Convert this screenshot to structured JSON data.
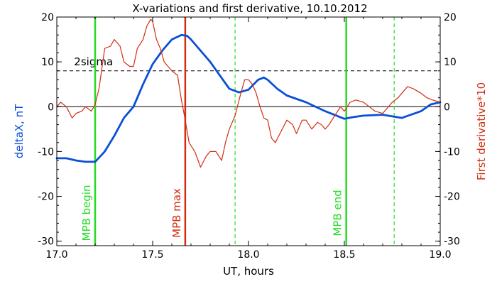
{
  "chart_data": {
    "type": "line",
    "title": "X-variations and first derivative, 10.10.2012",
    "xlabel": "UT, hours",
    "ylabel_left": "deltaX, nT",
    "ylabel_right": "First derivative*10",
    "xlim": [
      17.0,
      19.0
    ],
    "ylim": [
      -31,
      20
    ],
    "x_ticks": [
      17.0,
      17.5,
      18.0,
      18.5,
      19.0
    ],
    "x_tick_labels": [
      "17.0",
      "17.5",
      "18.0",
      "18.5",
      "19.0"
    ],
    "y_ticks": [
      20,
      10,
      0,
      -10,
      -20,
      -30
    ],
    "y_tick_labels": [
      "20",
      "10",
      "0",
      "-10",
      "-20",
      "-30"
    ],
    "colors": {
      "deltaX": "#0a4fd8",
      "derivative": "#d22d10",
      "mpb_marker": "#22dd22",
      "mpb_max": "#d22d10",
      "guide": "#000000"
    },
    "series": [
      {
        "name": "deltaX, nT",
        "axis": "left",
        "x": [
          17.0,
          17.05,
          17.1,
          17.15,
          17.2,
          17.25,
          17.3,
          17.35,
          17.4,
          17.45,
          17.5,
          17.55,
          17.6,
          17.65,
          17.68,
          17.7,
          17.75,
          17.8,
          17.85,
          17.9,
          17.95,
          18.0,
          18.05,
          18.08,
          18.1,
          18.15,
          18.2,
          18.3,
          18.4,
          18.5,
          18.55,
          18.6,
          18.7,
          18.8,
          18.9,
          18.95,
          19.0
        ],
        "y": [
          -11.5,
          -11.5,
          -12.0,
          -12.3,
          -12.3,
          -10.0,
          -6.5,
          -2.5,
          0.0,
          5.0,
          9.5,
          12.5,
          15.0,
          16.0,
          15.8,
          15.0,
          12.5,
          10.0,
          7.0,
          4.0,
          3.2,
          3.8,
          6.0,
          6.5,
          6.0,
          4.0,
          2.5,
          1.0,
          -1.0,
          -2.7,
          -2.3,
          -2.0,
          -1.8,
          -2.5,
          -1.0,
          0.5,
          1.0
        ]
      },
      {
        "name": "First derivative*10",
        "axis": "right",
        "x": [
          17.0,
          17.02,
          17.05,
          17.08,
          17.1,
          17.13,
          17.15,
          17.18,
          17.2,
          17.22,
          17.25,
          17.28,
          17.3,
          17.33,
          17.35,
          17.38,
          17.4,
          17.42,
          17.45,
          17.47,
          17.49,
          17.5,
          17.52,
          17.54,
          17.56,
          17.58,
          17.6,
          17.63,
          17.65,
          17.67,
          17.69,
          17.72,
          17.75,
          17.78,
          17.8,
          17.83,
          17.86,
          17.88,
          17.9,
          17.93,
          17.96,
          17.98,
          18.0,
          18.02,
          18.04,
          18.06,
          18.08,
          18.1,
          18.12,
          18.14,
          18.17,
          18.2,
          18.23,
          18.25,
          18.28,
          18.3,
          18.33,
          18.36,
          18.38,
          18.4,
          18.42,
          18.45,
          18.48,
          18.5,
          18.53,
          18.56,
          18.6,
          18.63,
          18.66,
          18.7,
          18.72,
          18.75,
          18.78,
          18.8,
          18.83,
          18.86,
          18.88,
          18.9,
          18.93,
          18.96,
          19.0
        ],
        "y": [
          0,
          1,
          0,
          -2.5,
          -1.5,
          -1,
          0,
          -1,
          0.5,
          4,
          13,
          13.5,
          15,
          13.5,
          10,
          9,
          9,
          13,
          15,
          18,
          19.5,
          19,
          15,
          13,
          10,
          9,
          8,
          7,
          1.5,
          -3,
          -8,
          -10,
          -13.5,
          -11,
          -10,
          -10,
          -12,
          -8,
          -5,
          -2,
          3,
          6,
          6,
          5,
          3,
          0,
          -2.5,
          -3,
          -7,
          -8,
          -5.5,
          -3,
          -4,
          -6,
          -3,
          -3,
          -5,
          -3.5,
          -4,
          -5,
          -4,
          -2,
          0,
          -1,
          1,
          1.5,
          1,
          0,
          -1,
          -1.5,
          -0.5,
          1,
          2,
          3,
          4.5,
          4,
          3.5,
          3,
          2,
          1.5,
          1
        ]
      }
    ],
    "reference_lines": {
      "two_sigma_label": "2sigma",
      "two_sigma_value": 8,
      "zero_value": 0
    },
    "markers": [
      {
        "label": "MPB begin",
        "x": 17.2,
        "kind": "solid",
        "color_key": "mpb_marker",
        "show_label": true
      },
      {
        "label": "MPB max",
        "x": 17.67,
        "kind": "solid",
        "color_key": "mpb_max",
        "show_label": true
      },
      {
        "label": "",
        "x": 17.93,
        "kind": "dashed",
        "color_key": "mpb_marker",
        "show_label": false
      },
      {
        "label": "MPB end",
        "x": 18.51,
        "kind": "solid",
        "color_key": "mpb_marker",
        "show_label": true
      },
      {
        "label": "",
        "x": 18.76,
        "kind": "dashed",
        "color_key": "mpb_marker",
        "show_label": false
      }
    ]
  }
}
